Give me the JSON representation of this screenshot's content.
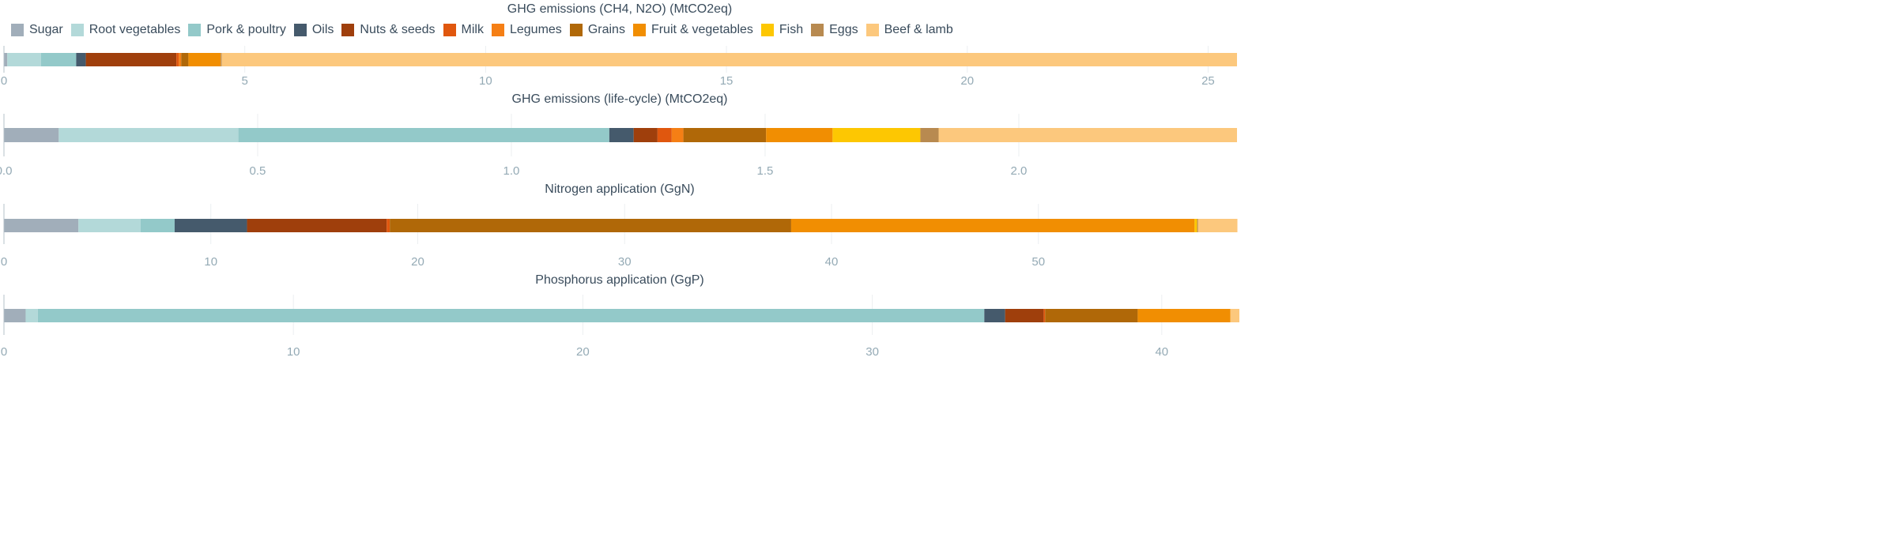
{
  "chart_data": {
    "type": "bar",
    "orientation": "horizontal-stacked",
    "legend_position": "top-left",
    "grid": true,
    "categories": [
      "Sugar",
      "Root vegetables",
      "Pork & poultry",
      "Oils",
      "Nuts & seeds",
      "Milk",
      "Legumes",
      "Grains",
      "Fruit & vegetables",
      "Fish",
      "Eggs",
      "Beef & lamb"
    ],
    "colors": [
      "#a1aeba",
      "#b3d9d9",
      "#93c9c9",
      "#455a6c",
      "#9f3f0c",
      "#e0570e",
      "#f57f15",
      "#b06808",
      "#f18e02",
      "#fdc702",
      "#b88a50",
      "#fcc87d"
    ],
    "panels": [
      {
        "title": "GHG emissions (CH4, N2O) (MtCO2eq)",
        "xlim": [
          0,
          25.6
        ],
        "ticks": [
          0,
          5,
          10,
          15,
          20,
          25
        ],
        "tick_labels": [
          "0",
          "5",
          "10",
          "15",
          "20",
          "25"
        ],
        "values": [
          0.07,
          0.7,
          0.73,
          0.2,
          1.88,
          0.05,
          0.05,
          0.15,
          0.67,
          0.0,
          0.02,
          21.08
        ]
      },
      {
        "title": "GHG emissions (life-cycle) (MtCO2eq)",
        "xlim": [
          0,
          2.43
        ],
        "ticks": [
          0,
          0.5,
          1.0,
          1.5,
          2.0
        ],
        "tick_labels": [
          "0.0",
          "0.5",
          "1.0",
          "1.5",
          "2.0"
        ],
        "values": [
          0.108,
          0.354,
          0.731,
          0.048,
          0.047,
          0.028,
          0.023,
          0.163,
          0.131,
          0.173,
          0.036,
          0.588
        ]
      },
      {
        "title": "Nitrogen application (GgN)",
        "xlim": [
          0,
          59.6
        ],
        "ticks": [
          0,
          10,
          20,
          30,
          40,
          50
        ],
        "tick_labels": [
          "0",
          "10",
          "20",
          "30",
          "40",
          "50"
        ],
        "values": [
          3.6,
          3.0,
          1.65,
          3.5,
          6.75,
          0.15,
          0.0,
          19.4,
          19.5,
          0.12,
          0.05,
          1.9
        ]
      },
      {
        "title": "Phosphorus application (GgP)",
        "xlim": [
          0,
          42.6
        ],
        "ticks": [
          0,
          10,
          20,
          30,
          40
        ],
        "tick_labels": [
          "0",
          "10",
          "20",
          "30",
          "40"
        ],
        "values": [
          0.75,
          0.42,
          32.7,
          0.72,
          1.33,
          0.05,
          0.0,
          3.2,
          3.2,
          0.0,
          0.0,
          0.33
        ]
      }
    ]
  }
}
